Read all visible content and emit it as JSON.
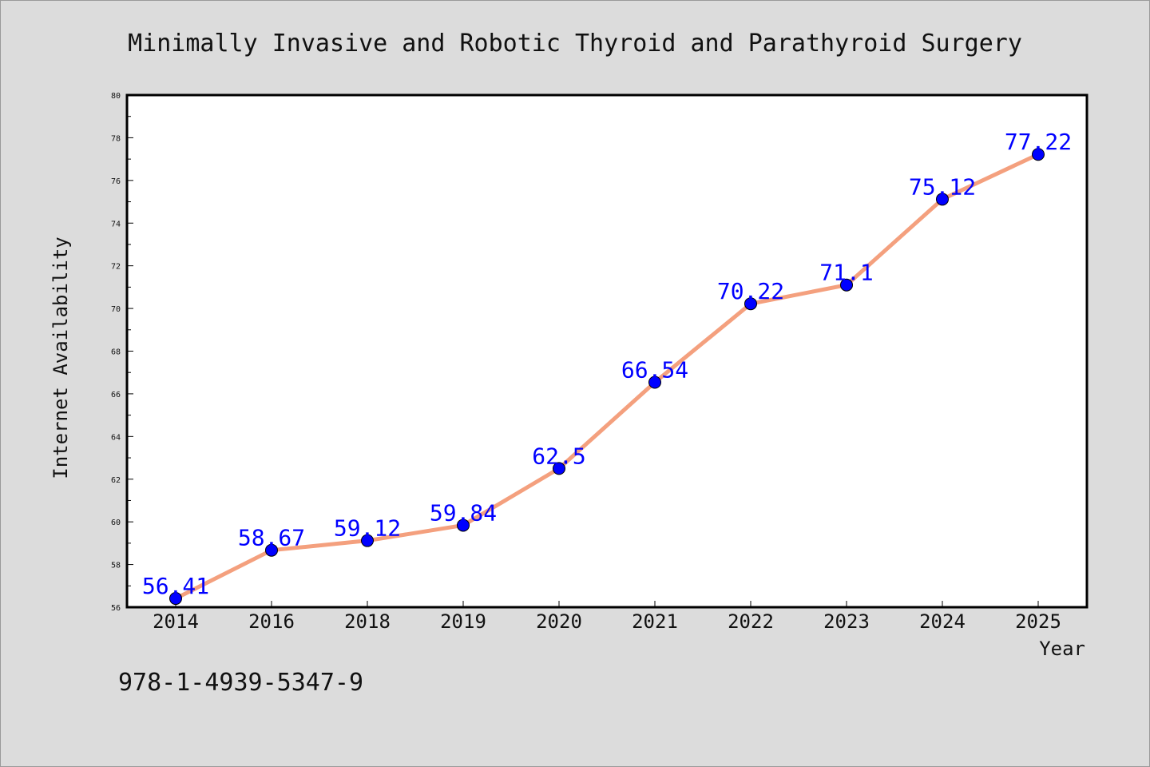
{
  "chart_data": {
    "type": "line",
    "title": "Minimally Invasive and Robotic Thyroid and Parathyroid Surgery",
    "xlabel": "Year",
    "ylabel": "Internet Availability",
    "categories": [
      "2014",
      "2016",
      "2018",
      "2019",
      "2020",
      "2021",
      "2022",
      "2023",
      "2024",
      "2025"
    ],
    "series": [
      {
        "values": [
          56.41,
          58.67,
          59.12,
          59.84,
          62.5,
          66.54,
          70.22,
          71.1,
          75.12,
          77.22
        ],
        "data_labels": [
          "56.41",
          "58.67",
          "59.12",
          "59.84",
          "62.5",
          "66.54",
          "70.22",
          "71.1",
          "75.12",
          "77.22"
        ],
        "line_color": "#f4a07e",
        "marker_color": "#0000ff"
      }
    ],
    "ylim": [
      56,
      80
    ],
    "y_ticks": [
      "56",
      "58",
      "60",
      "62",
      "64",
      "66",
      "68",
      "70",
      "72",
      "74",
      "76",
      "78",
      "80"
    ],
    "grid": false,
    "legend": "none",
    "label_color": "#0000ff"
  },
  "annotation": "978-1-4939-5347-9"
}
